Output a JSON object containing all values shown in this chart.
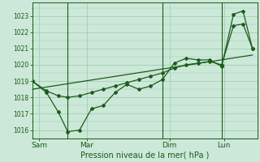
{
  "xlabel": "Pression niveau de la mer( hPa )",
  "bg_color": "#cce8d8",
  "grid_color": "#99ccaa",
  "line_color": "#1a5c1a",
  "ylim": [
    1015.5,
    1023.8
  ],
  "xlim": [
    0,
    9.5
  ],
  "day_labels": [
    "Sam",
    "Mar",
    "Dim",
    "Lun"
  ],
  "day_positions": [
    0.3,
    2.3,
    5.8,
    8.1
  ],
  "vline_positions": [
    1.5,
    5.5,
    8.0
  ],
  "yticks": [
    1016,
    1017,
    1018,
    1019,
    1020,
    1021,
    1022,
    1023
  ],
  "series_trend_x": [
    0.0,
    9.3
  ],
  "series_trend_y": [
    1018.5,
    1020.6
  ],
  "series_zigzag_x": [
    0.0,
    0.6,
    1.1,
    1.5,
    2.0,
    2.5,
    3.0,
    3.5,
    4.0,
    4.5,
    5.0,
    5.5,
    6.0,
    6.5,
    7.0,
    7.5,
    8.0,
    8.5,
    8.9,
    9.3
  ],
  "series_zigzag_y": [
    1019.0,
    1018.3,
    1017.1,
    1015.9,
    1016.0,
    1017.3,
    1017.5,
    1018.3,
    1018.8,
    1018.5,
    1018.7,
    1019.1,
    1020.1,
    1020.4,
    1020.3,
    1020.3,
    1019.9,
    1023.1,
    1023.3,
    1021.0
  ],
  "series_smooth_x": [
    0.0,
    0.6,
    1.1,
    1.5,
    2.0,
    2.5,
    3.0,
    3.5,
    4.0,
    4.5,
    5.0,
    5.5,
    6.0,
    6.5,
    7.0,
    7.5,
    8.0,
    8.5,
    8.9,
    9.3
  ],
  "series_smooth_y": [
    1019.0,
    1018.4,
    1018.1,
    1018.0,
    1018.1,
    1018.3,
    1018.5,
    1018.7,
    1018.9,
    1019.1,
    1019.3,
    1019.5,
    1019.8,
    1020.0,
    1020.1,
    1020.2,
    1020.0,
    1022.4,
    1022.5,
    1021.0
  ],
  "xlabel_fontsize": 7,
  "ytick_fontsize": 5.5,
  "xtick_fontsize": 6.5
}
